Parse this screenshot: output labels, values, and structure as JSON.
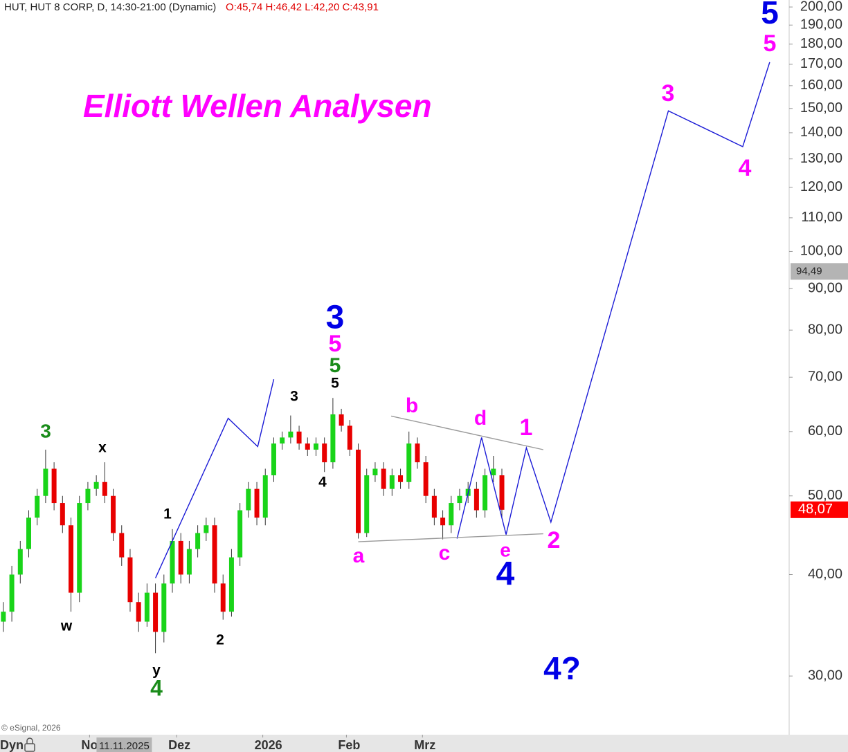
{
  "chart_data": {
    "type": "candlestick",
    "title": "Elliott Wellen Analysen",
    "header": "HUT, HUT 8 CORP, D, 14:30-21:00 (Dynamic)",
    "header_ohlc": "O:45,74 H:46,42 L:42,20 C:43,91",
    "open": [
      35,
      36,
      40,
      43,
      47,
      50,
      54,
      49,
      46,
      38,
      49,
      51,
      52,
      50,
      45,
      42,
      37,
      35,
      38,
      34,
      39,
      44,
      40,
      43,
      45,
      46,
      39,
      36,
      42,
      48,
      51,
      47,
      53,
      58,
      59,
      60,
      58,
      57,
      58,
      55,
      63,
      61,
      57,
      45,
      53,
      54,
      51,
      53,
      52,
      58,
      55,
      50,
      47,
      46,
      49,
      50,
      51,
      48,
      53,
      53
    ],
    "high": [
      37,
      41,
      44,
      48,
      51,
      57,
      55,
      50,
      47,
      50,
      52,
      53,
      55,
      51,
      46,
      43,
      38,
      39,
      39,
      40,
      45.5,
      45,
      44,
      46,
      47,
      47,
      40,
      43,
      49,
      52,
      52,
      54,
      59,
      60,
      62.8,
      61,
      59,
      59,
      59,
      66,
      64,
      62,
      58,
      54,
      55,
      55,
      54,
      54,
      60,
      59,
      56,
      51,
      48,
      50,
      51,
      52,
      52,
      54,
      56,
      54
    ],
    "low": [
      34,
      35,
      39,
      42,
      46,
      49,
      48,
      45,
      36,
      37,
      48,
      50,
      49,
      44,
      41,
      36,
      34,
      34.5,
      32,
      33,
      38,
      39,
      39,
      42,
      44,
      38,
      35.2,
      35.5,
      41,
      47,
      46,
      46,
      52,
      57,
      58,
      57,
      56,
      56,
      53.5,
      54,
      60,
      56,
      44.3,
      44.5,
      52,
      50,
      50,
      51,
      51,
      54,
      49,
      46,
      44.2,
      45,
      48,
      49,
      47,
      47,
      52,
      47
    ],
    "close": [
      36,
      40,
      43,
      47,
      50,
      54,
      49,
      46,
      38,
      49,
      51,
      52,
      50,
      45,
      42,
      37,
      35,
      38,
      34,
      39,
      44,
      40,
      43,
      45,
      46,
      39,
      36,
      42,
      48,
      51,
      47,
      53,
      58,
      59,
      60,
      58,
      57,
      58,
      55,
      63,
      61,
      57,
      45,
      53,
      54,
      51,
      53,
      52,
      58,
      55,
      50,
      47,
      46,
      49,
      50,
      51,
      48,
      53,
      54,
      48.07
    ],
    "up_color": "#19d419",
    "down_color": "#e80000",
    "xlim": [
      -0.4,
      93
    ],
    "xticks": [
      {
        "value": 10.2,
        "label": "Nov"
      },
      {
        "value": 20.5,
        "label": "Dez"
      },
      {
        "value": 30.7,
        "label": "2026"
      },
      {
        "value": 40.6,
        "label": "Feb"
      },
      {
        "value": 49.6,
        "label": "Mrz"
      }
    ],
    "crosshair": {
      "value": 14.3,
      "label": "11.11.2025"
    },
    "ylim": [
      25.4,
      204
    ],
    "log_scale": true,
    "yticks": [
      {
        "value": 30,
        "label": "30,00"
      },
      {
        "value": 40,
        "label": "40,00"
      },
      {
        "value": 50,
        "label": "50,00"
      },
      {
        "value": 60,
        "label": "60,00"
      },
      {
        "value": 70,
        "label": "70,00"
      },
      {
        "value": 80,
        "label": "80,00"
      },
      {
        "value": 90,
        "label": "90,00"
      },
      {
        "value": 100,
        "label": "100,00"
      },
      {
        "value": 110,
        "label": "110,00"
      },
      {
        "value": 120,
        "label": "120,00"
      },
      {
        "value": 130,
        "label": "130,00"
      },
      {
        "value": 140,
        "label": "140,00"
      },
      {
        "value": 150,
        "label": "150,00"
      },
      {
        "value": 160,
        "label": "160,00"
      },
      {
        "value": 170,
        "label": "170,00"
      },
      {
        "value": 180,
        "label": "180,00"
      },
      {
        "value": 190,
        "label": "190,00"
      },
      {
        "value": 200,
        "label": "200,00"
      }
    ],
    "lines": [
      {
        "color": "#1a1ad6",
        "x": [
          18,
          26.6,
          30.1,
          32,
          null,
          53.7,
          56.6,
          59.5,
          61.9,
          64.8,
          78.7,
          87.5,
          90.7
        ],
        "values": [
          39.6,
          62.3,
          57.5,
          69.6,
          null,
          44.3,
          59.0,
          44.8,
          57.3,
          46.4,
          149,
          134.6,
          171
        ]
      },
      {
        "color": "#9a9a9a",
        "x": [
          45.9,
          63.9,
          null,
          42.0,
          63.9
        ],
        "values": [
          62.7,
          57.0,
          null,
          43.9,
          44.9
        ]
      }
    ],
    "annotations": [
      {
        "text": "3",
        "color": "#1a8c1a"
      },
      {
        "text": "x",
        "color": "#000000"
      },
      {
        "text": "w",
        "color": "#000000"
      },
      {
        "text": "1",
        "color": "#000000"
      },
      {
        "text": "y",
        "color": "#000000"
      },
      {
        "text": "4",
        "color": "#1a8c1a"
      },
      {
        "text": "2",
        "color": "#000000"
      },
      {
        "text": "3",
        "color": "#000000"
      },
      {
        "text": "4",
        "color": "#000000"
      },
      {
        "text": "5",
        "color": "#000000"
      },
      {
        "text": "5",
        "color": "#1a8c1a"
      },
      {
        "text": "5",
        "color": "#ff00ff"
      },
      {
        "text": "3",
        "color": "#0000e6"
      },
      {
        "text": "a",
        "color": "#ff00ff"
      },
      {
        "text": "b",
        "color": "#ff00ff"
      },
      {
        "text": "c",
        "color": "#ff00ff"
      },
      {
        "text": "d",
        "color": "#ff00ff"
      },
      {
        "text": "e",
        "color": "#ff00ff"
      },
      {
        "text": "4",
        "color": "#0000e6"
      },
      {
        "text": "1",
        "color": "#ff00ff"
      },
      {
        "text": "2",
        "color": "#ff00ff"
      },
      {
        "text": "3",
        "color": "#ff00ff"
      },
      {
        "text": "4",
        "color": "#ff00ff"
      },
      {
        "text": "5",
        "color": "#ff00ff"
      },
      {
        "text": "5",
        "color": "#0000e6"
      },
      {
        "text": "4?",
        "color": "#0000e6"
      }
    ],
    "price_markers": [
      {
        "value": 94.49,
        "label": "94,49",
        "color": "#b4b4b4"
      },
      {
        "value": 48.07,
        "label": "48,07",
        "color": "#ff0000"
      }
    ],
    "copyright": "© eSignal, 2026",
    "footer_label": "Dyn"
  }
}
